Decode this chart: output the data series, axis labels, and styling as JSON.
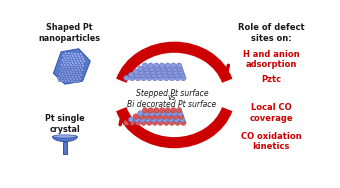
{
  "title_left_top": "Shaped Pt\nnanoparticles",
  "title_left_bottom": "Pt single\ncrystal",
  "title_right_header": "Role of defect\nsites on:",
  "right_items_red": [
    "H and anion\nadsorption",
    "Pztc",
    "Local CO\ncoverage",
    "CO oxidation\nkinetics"
  ],
  "center_label_top": "Stepped Pt surface",
  "center_label_mid": "vs",
  "center_label_bot": "Bi decorated Pt surface",
  "bg_color": "#ffffff",
  "text_color_black": "#1a1a1a",
  "text_color_red": "#cc0000",
  "arrow_color": "#cc0000",
  "np_base": "#5577cc",
  "np_light": "#99aaee",
  "np_dark": "#3355aa",
  "surf_blue": "#8899dd",
  "surf_blue_dark": "#5566bb",
  "bi_color": "#dd5555",
  "bi_dark": "#994444",
  "crystal_color": "#5577cc",
  "crystal_light": "#aabbee"
}
